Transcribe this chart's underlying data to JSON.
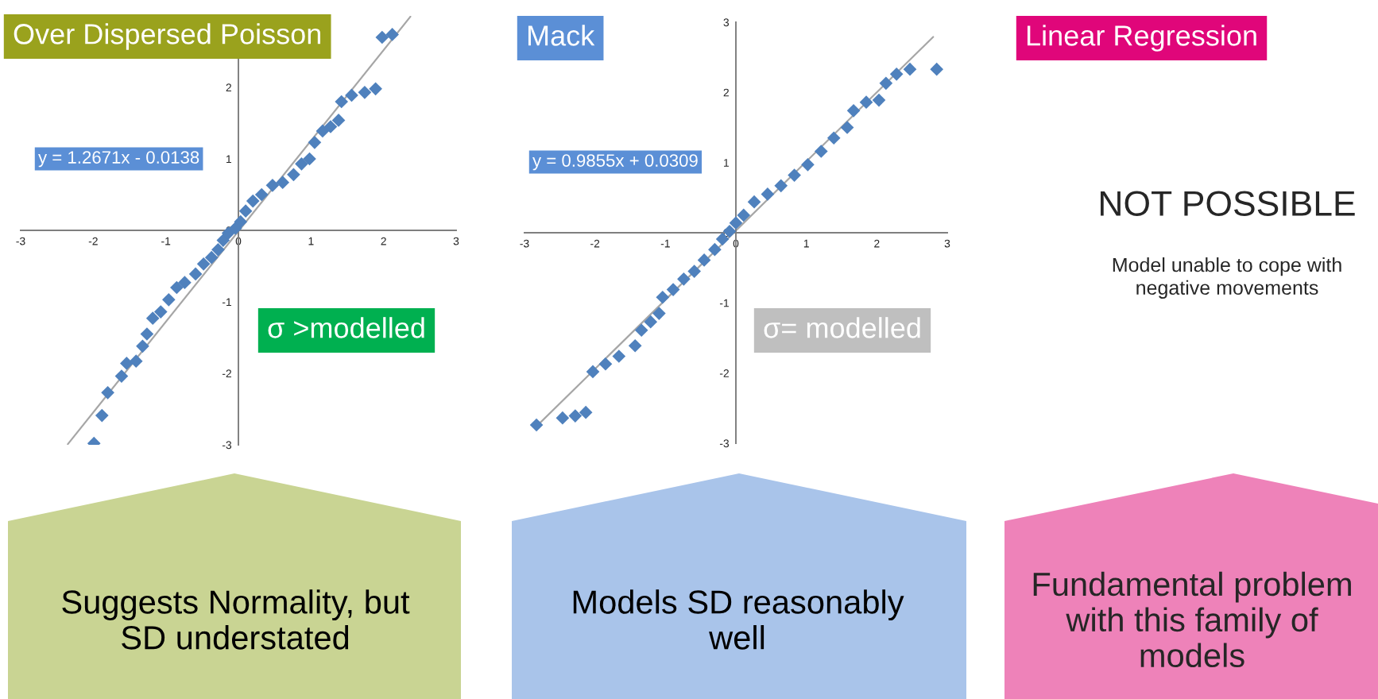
{
  "chart_data": [
    {
      "type": "scatter",
      "title": "Over Dispersed Poisson",
      "grid": false,
      "xlim": [
        -3,
        3
      ],
      "ylim": [
        -3,
        3
      ],
      "xticks": [
        -3,
        -2,
        -1,
        0,
        1,
        2,
        3
      ],
      "yticks": [
        -3,
        -2,
        -1,
        0,
        1,
        2
      ],
      "annotations": [
        "y = 1.2671x - 0.0138",
        "σ >modelled",
        "Suggests Normality, but\nSD understated"
      ],
      "series": [
        {
          "type": "scatter",
          "marker": "diamond",
          "color": "#4f81bd",
          "x": [
            -1.99,
            -1.88,
            -1.8,
            -1.61,
            -1.54,
            -1.41,
            -1.32,
            -1.26,
            -1.18,
            -1.07,
            -0.96,
            -0.85,
            -0.74,
            -0.59,
            -0.48,
            -0.37,
            -0.28,
            -0.21,
            -0.14,
            -0.04,
            0.03,
            0.1,
            0.2,
            0.32,
            0.47,
            0.61,
            0.76,
            0.87,
            0.98,
            1.05,
            1.16,
            1.27,
            1.38,
            1.42,
            1.56,
            1.74,
            1.89,
            1.98,
            2.12
          ],
          "values": [
            -2.98,
            -2.59,
            -2.27,
            -2.04,
            -1.86,
            -1.83,
            -1.62,
            -1.45,
            -1.23,
            -1.14,
            -0.97,
            -0.8,
            -0.73,
            -0.61,
            -0.47,
            -0.38,
            -0.27,
            -0.14,
            -0.04,
            0.03,
            0.12,
            0.27,
            0.41,
            0.5,
            0.63,
            0.67,
            0.78,
            0.93,
            1.0,
            1.23,
            1.39,
            1.45,
            1.54,
            1.8,
            1.89,
            1.93,
            1.98,
            2.7,
            2.74
          ]
        },
        {
          "type": "line",
          "color": "#a6a6a6",
          "x": [
            -2.35,
            2.37
          ],
          "values": [
            -2.99,
            2.99
          ]
        }
      ]
    },
    {
      "type": "scatter",
      "title": "Mack",
      "grid": false,
      "xlim": [
        -3,
        3
      ],
      "ylim": [
        -3,
        3
      ],
      "xticks": [
        -3,
        -2,
        -1,
        0,
        1,
        2,
        3
      ],
      "yticks": [
        -3,
        -2,
        -1,
        0,
        1,
        2,
        3
      ],
      "annotations": [
        "y = 0.9855x + 0.0309",
        "σ= modelled",
        "Models SD reasonably\nwell"
      ],
      "series": [
        {
          "type": "scatter",
          "marker": "diamond",
          "color": "#4f81bd",
          "x": [
            -2.83,
            -2.46,
            -2.28,
            -2.13,
            -2.03,
            -1.85,
            -1.66,
            -1.43,
            -1.34,
            -1.21,
            -1.09,
            -1.04,
            -0.89,
            -0.74,
            -0.59,
            -0.45,
            -0.3,
            -0.19,
            -0.09,
            0.0,
            0.11,
            0.26,
            0.45,
            0.64,
            0.83,
            1.02,
            1.21,
            1.39,
            1.58,
            1.67,
            1.85,
            2.03,
            2.13,
            2.28,
            2.47,
            2.85
          ],
          "values": [
            -2.74,
            -2.64,
            -2.61,
            -2.56,
            -1.98,
            -1.87,
            -1.76,
            -1.61,
            -1.39,
            -1.27,
            -1.15,
            -0.92,
            -0.81,
            -0.66,
            -0.55,
            -0.39,
            -0.24,
            -0.09,
            0.02,
            0.14,
            0.25,
            0.44,
            0.55,
            0.67,
            0.82,
            0.97,
            1.16,
            1.35,
            1.5,
            1.74,
            1.86,
            1.89,
            2.13,
            2.26,
            2.33,
            2.33
          ]
        },
        {
          "type": "line",
          "color": "#a6a6a6",
          "x": [
            -2.8,
            2.8
          ],
          "values": [
            -2.73,
            2.79
          ]
        }
      ]
    },
    {
      "type": "other",
      "title": "Linear Regression",
      "annotations": [
        "NOT POSSIBLE",
        "Model unable to cope with\nnegative movements",
        "Fundamental problem\nwith this family of\nmodels"
      ]
    }
  ]
}
